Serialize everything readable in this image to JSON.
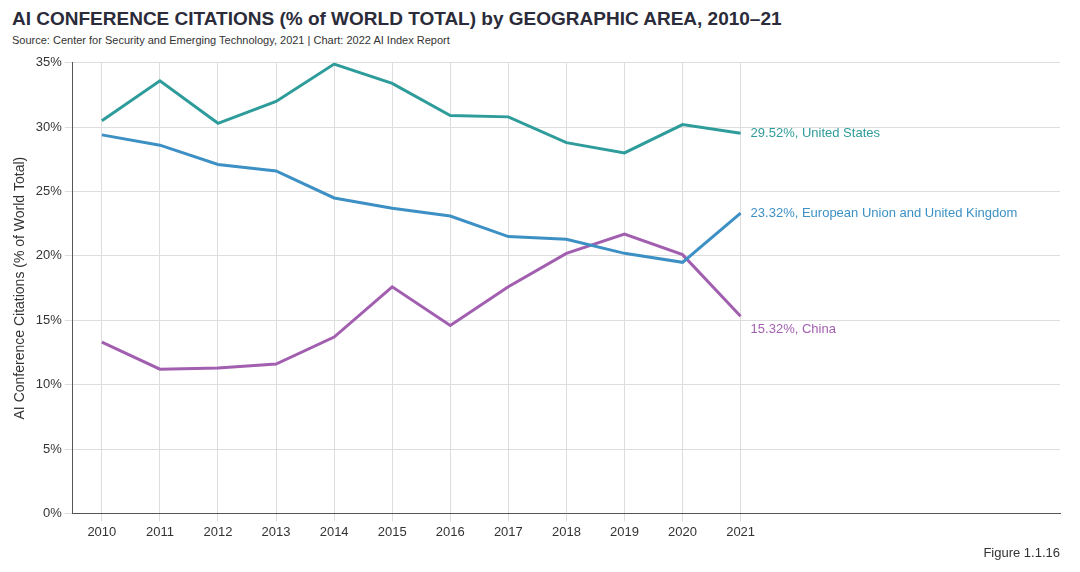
{
  "chart_data": {
    "type": "line",
    "title": "AI CONFERENCE CITATIONS (% of WORLD TOTAL) by GEOGRAPHIC AREA, 2010–21",
    "subtitle": "Source: Center for Security and Emerging Technology, 2021 | Chart: 2022 AI Index Report",
    "y_label": "AI Conference Citations (% of World Total)",
    "figure_label": "Figure 1.1.16",
    "x": [
      2010,
      2011,
      2012,
      2013,
      2014,
      2015,
      2016,
      2017,
      2018,
      2019,
      2020,
      2021
    ],
    "xlim": [
      2009.5,
      2026.5
    ],
    "xticks": [
      2010,
      2011,
      2012,
      2013,
      2014,
      2015,
      2016,
      2017,
      2018,
      2019,
      2020,
      2021
    ],
    "ylim": [
      0,
      35
    ],
    "yticks": [
      {
        "value": 0,
        "label": "0%"
      },
      {
        "value": 5,
        "label": "5%"
      },
      {
        "value": 10,
        "label": "10%"
      },
      {
        "value": 15,
        "label": "15%"
      },
      {
        "value": 20,
        "label": "20%"
      },
      {
        "value": 25,
        "label": "25%"
      },
      {
        "value": 30,
        "label": "30%"
      },
      {
        "value": 35,
        "label": "35%"
      }
    ],
    "grid": true,
    "series": [
      {
        "name": "United States",
        "color": "#2e9c9a",
        "values": [
          30.5,
          33.6,
          30.3,
          32.0,
          34.9,
          33.4,
          30.9,
          30.8,
          28.8,
          28.0,
          30.2,
          29.52
        ]
      },
      {
        "name": "European Union and United Kingdom",
        "color": "#3d90c4",
        "values": [
          29.4,
          28.6,
          27.1,
          26.6,
          24.5,
          23.7,
          23.1,
          21.5,
          21.3,
          20.2,
          19.5,
          23.32
        ]
      },
      {
        "name": "China",
        "color": "#a25fb0",
        "values": [
          13.3,
          11.2,
          11.3,
          11.6,
          13.7,
          17.6,
          14.6,
          17.6,
          20.2,
          21.7,
          20.1,
          15.32
        ]
      }
    ],
    "annotations": [
      {
        "text": "29.52%, United States",
        "series": "United States"
      },
      {
        "text": "23.32%, European Union and United Kingdom",
        "series": "European Union and United Kingdom"
      },
      {
        "text": "15.32%, China",
        "series": "China"
      }
    ]
  }
}
